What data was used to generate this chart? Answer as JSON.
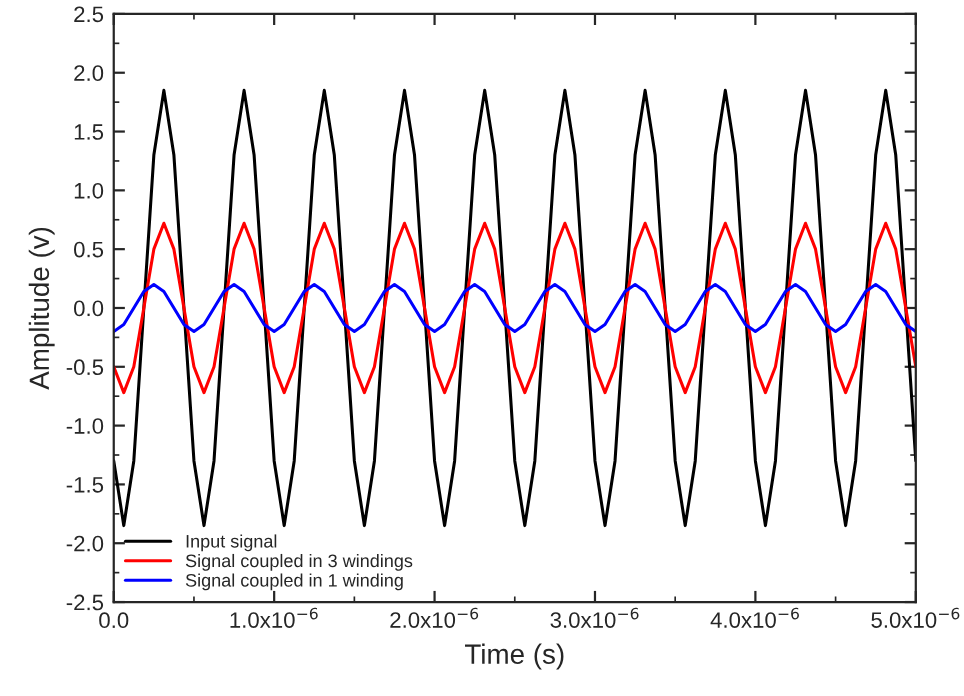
{
  "chart_data": {
    "type": "line",
    "xlabel": "Time (s)",
    "ylabel": "Amplitude (v)",
    "x": [
      0.0,
      6.25e-08,
      1.25e-07,
      1.875e-07,
      2.5e-07,
      3.125e-07,
      3.75e-07,
      4.375e-07,
      5e-07,
      5.625e-07,
      6.25e-07,
      6.875e-07,
      7.5e-07,
      8.125e-07,
      8.75e-07,
      9.375e-07,
      1e-06,
      1.0625e-06,
      1.125e-06,
      1.1875e-06,
      1.25e-06,
      1.3125e-06,
      1.375e-06,
      1.4375e-06,
      1.5e-06,
      1.5625e-06,
      1.625e-06,
      1.6875e-06,
      1.75e-06,
      1.8125e-06,
      1.875e-06,
      1.9375e-06,
      2e-06,
      2.0625e-06,
      2.125e-06,
      2.1875e-06,
      2.25e-06,
      2.3125e-06,
      2.375e-06,
      2.4375e-06,
      2.5e-06,
      2.5625e-06,
      2.625e-06,
      2.6875e-06,
      2.75e-06,
      2.8125e-06,
      2.875e-06,
      2.9375e-06,
      3e-06,
      3.0625e-06,
      3.125e-06,
      3.1875e-06,
      3.25e-06,
      3.3125e-06,
      3.375e-06,
      3.4375e-06,
      3.5e-06,
      3.5625e-06,
      3.625e-06,
      3.6875e-06,
      3.75e-06,
      3.8125e-06,
      3.875e-06,
      3.9375e-06,
      4e-06,
      4.0625e-06,
      4.125e-06,
      4.1875e-06,
      4.25e-06,
      4.3125e-06,
      4.375e-06,
      4.4375e-06,
      4.5e-06,
      4.5625e-06,
      4.625e-06,
      4.6875e-06,
      4.75e-06,
      4.8125e-06,
      4.875e-06,
      4.9375e-06,
      5e-06
    ],
    "series": [
      {
        "name": "Input signal",
        "color": "#000000",
        "values": [
          -1.3,
          -1.85,
          -1.3,
          0,
          1.3,
          1.85,
          1.3,
          0,
          -1.3,
          -1.85,
          -1.3,
          0,
          1.3,
          1.85,
          1.3,
          0,
          -1.3,
          -1.85,
          -1.3,
          0,
          1.3,
          1.85,
          1.3,
          0,
          -1.3,
          -1.85,
          -1.3,
          0,
          1.3,
          1.85,
          1.3,
          0,
          -1.3,
          -1.85,
          -1.3,
          0,
          1.3,
          1.85,
          1.3,
          0,
          -1.3,
          -1.85,
          -1.3,
          0,
          1.3,
          1.85,
          1.3,
          0,
          -1.3,
          -1.85,
          -1.3,
          0,
          1.3,
          1.85,
          1.3,
          0,
          -1.3,
          -1.85,
          -1.3,
          0,
          1.3,
          1.85,
          1.3,
          0,
          -1.3,
          -1.85,
          -1.3,
          0,
          1.3,
          1.85,
          1.3,
          0,
          -1.3,
          -1.85,
          -1.3,
          0,
          1.3,
          1.85,
          1.3,
          0,
          -1.3
        ]
      },
      {
        "name": "Signal coupled in 3 windings",
        "color": "#ff0000",
        "values": [
          -0.5,
          -0.72,
          -0.5,
          0,
          0.5,
          0.72,
          0.5,
          0,
          -0.5,
          -0.72,
          -0.5,
          0,
          0.5,
          0.72,
          0.5,
          0,
          -0.5,
          -0.72,
          -0.5,
          0,
          0.5,
          0.72,
          0.5,
          0,
          -0.5,
          -0.72,
          -0.5,
          0,
          0.5,
          0.72,
          0.5,
          0,
          -0.5,
          -0.72,
          -0.5,
          0,
          0.5,
          0.72,
          0.5,
          0,
          -0.5,
          -0.72,
          -0.5,
          0,
          0.5,
          0.72,
          0.5,
          0,
          -0.5,
          -0.72,
          -0.5,
          0,
          0.5,
          0.72,
          0.5,
          0,
          -0.5,
          -0.72,
          -0.5,
          0,
          0.5,
          0.72,
          0.5,
          0,
          -0.5,
          -0.72,
          -0.5,
          0,
          0.5,
          0.72,
          0.5,
          0,
          -0.5,
          -0.72,
          -0.5,
          0,
          0.5,
          0.72,
          0.5,
          0,
          -0.5
        ]
      },
      {
        "name": "Signal coupled in 1 winding",
        "color": "#0000ff",
        "values": [
          -0.2,
          -0.14,
          0,
          0.14,
          0.2,
          0.14,
          0,
          -0.14,
          -0.2,
          -0.14,
          0,
          0.14,
          0.2,
          0.14,
          0,
          -0.14,
          -0.2,
          -0.14,
          0,
          0.14,
          0.2,
          0.14,
          0,
          -0.14,
          -0.2,
          -0.14,
          0,
          0.14,
          0.2,
          0.14,
          0,
          -0.14,
          -0.2,
          -0.14,
          0,
          0.14,
          0.2,
          0.14,
          0,
          -0.14,
          -0.2,
          -0.14,
          0,
          0.14,
          0.2,
          0.14,
          0,
          -0.14,
          -0.2,
          -0.14,
          0,
          0.14,
          0.2,
          0.14,
          0,
          -0.14,
          -0.2,
          -0.14,
          0,
          0.14,
          0.2,
          0.14,
          0,
          -0.14,
          -0.2,
          -0.14,
          0,
          0.14,
          0.2,
          0.14,
          0,
          -0.14,
          -0.2,
          -0.14,
          0,
          0.14,
          0.2,
          0.14,
          0,
          -0.14,
          -0.2
        ]
      }
    ],
    "xlim": [
      0,
      5e-06
    ],
    "ylim": [
      -2.5,
      2.5
    ],
    "xticks": [
      {
        "value": 0,
        "label": "0.0"
      },
      {
        "value": 1e-06,
        "label": "1.0x10$^{−6}$"
      },
      {
        "value": 2e-06,
        "label": "2.0x10$^{−6}$"
      },
      {
        "value": 3e-06,
        "label": "3.0x10$^{−6}$"
      },
      {
        "value": 4e-06,
        "label": "4.0x10$^{−6}$"
      },
      {
        "value": 5e-06,
        "label": "5.0x10$^{−6}$"
      }
    ],
    "yticks": [
      {
        "value": -2.5,
        "label": "-2.5"
      },
      {
        "value": -2.0,
        "label": "-2.0"
      },
      {
        "value": -1.5,
        "label": "-1.5"
      },
      {
        "value": -1.0,
        "label": "-1.0"
      },
      {
        "value": -0.5,
        "label": "-0.5"
      },
      {
        "value": 0,
        "label": "0.0"
      },
      {
        "value": 0.5,
        "label": "0.5"
      },
      {
        "value": 1.0,
        "label": "1.0"
      },
      {
        "value": 1.5,
        "label": "1.5"
      },
      {
        "value": 2.0,
        "label": "2.0"
      },
      {
        "value": 2.5,
        "label": "2.5"
      }
    ],
    "grid": false,
    "legend": "bottom left",
    "marker": "none",
    "line_style": "solid"
  }
}
